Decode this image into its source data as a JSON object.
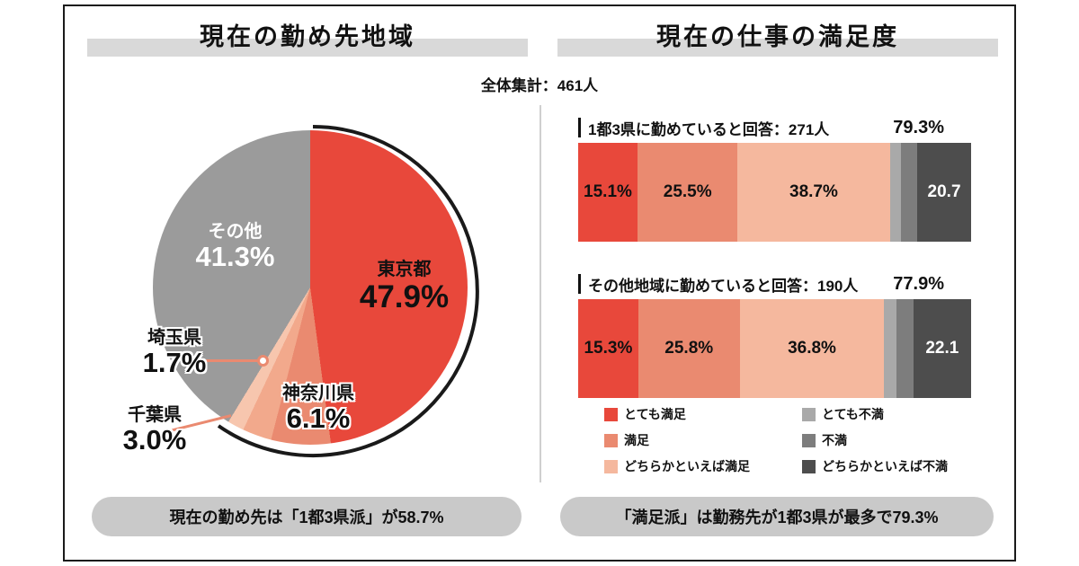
{
  "page": {
    "total_label": "全体集計：461人"
  },
  "left": {
    "title": "現在の勤め先地域",
    "caption": "現在の勤め先は「1都3県派」が58.7%"
  },
  "right": {
    "title": "現在の仕事の満足度",
    "caption": "「満足派」は勤務先が1都3県が最多で79.3%"
  },
  "colors": {
    "very_satisfied": "#e8483b",
    "satisfied": "#ea8a70",
    "somewhat_satisfied": "#f5b89e",
    "very_dissatisfied": "#a9a9a9",
    "dissatisfied": "#7d7d7d",
    "somewhat_dissatisfied": "#4d4d4d",
    "pie_other": "#9b9b9b",
    "pill": "#c9c9c9",
    "title_highlight": "#d9d9d9"
  },
  "chart_data": [
    {
      "type": "pie",
      "title": "現在の勤め先地域",
      "start_angle_deg": 0,
      "direction": "clockwise",
      "unit": "%",
      "slices": [
        {
          "label": "東京都",
          "value": 47.9,
          "display": "47.9%",
          "color": "#e8483b"
        },
        {
          "label": "神奈川県",
          "value": 6.1,
          "display": "6.1%",
          "color": "#ea8a70"
        },
        {
          "label": "千葉県",
          "value": 3.0,
          "display": "3.0%",
          "color": "#f2a98c"
        },
        {
          "label": "埼玉県",
          "value": 1.7,
          "display": "1.7%",
          "color": "#f7c6ae"
        },
        {
          "label": "その他",
          "value": 41.3,
          "display": "41.3%",
          "color": "#9b9b9b"
        }
      ]
    },
    {
      "type": "bar",
      "subtype": "stacked-horizontal",
      "title": "現在の仕事の満足度",
      "axis_range": [
        0,
        100
      ],
      "unit": "%",
      "bars": [
        {
          "label": "1都3県に勤めていると回答：271人",
          "satisfied_total": "79.3%",
          "segments": [
            {
              "name": "とても満足",
              "value": 15.1,
              "label": "15.1%",
              "color": "#e8483b",
              "text_color": "#111111"
            },
            {
              "name": "満足",
              "value": 25.5,
              "label": "25.5%",
              "color": "#ea8a70",
              "text_color": "#111111"
            },
            {
              "name": "どちらかといえば満足",
              "value": 38.7,
              "label": "38.7%",
              "color": "#f5b89e",
              "text_color": "#111111"
            },
            {
              "name": "とても不満",
              "value": 2.8,
              "label": "",
              "color": "#a9a9a9",
              "text_color": "#ffffff"
            },
            {
              "name": "不満",
              "value": 4.2,
              "label": "",
              "color": "#7d7d7d",
              "text_color": "#ffffff"
            },
            {
              "name": "どちらかといえば不満",
              "value": 13.7,
              "label": "20.7",
              "color": "#4d4d4d",
              "text_color": "#ffffff"
            }
          ]
        },
        {
          "label": "その他地域に勤めていると回答：190人",
          "satisfied_total": "77.9%",
          "segments": [
            {
              "name": "とても満足",
              "value": 15.3,
              "label": "15.3%",
              "color": "#e8483b",
              "text_color": "#111111"
            },
            {
              "name": "満足",
              "value": 25.8,
              "label": "25.8%",
              "color": "#ea8a70",
              "text_color": "#111111"
            },
            {
              "name": "どちらかといえば満足",
              "value": 36.8,
              "label": "36.8%",
              "color": "#f5b89e",
              "text_color": "#111111"
            },
            {
              "name": "とても不満",
              "value": 3.0,
              "label": "",
              "color": "#a9a9a9",
              "text_color": "#ffffff"
            },
            {
              "name": "不満",
              "value": 4.4,
              "label": "",
              "color": "#7d7d7d",
              "text_color": "#ffffff"
            },
            {
              "name": "どちらかといえば不満",
              "value": 14.7,
              "label": "22.1",
              "color": "#4d4d4d",
              "text_color": "#ffffff"
            }
          ]
        }
      ],
      "legend": [
        {
          "label": "とても満足",
          "color": "#e8483b"
        },
        {
          "label": "満足",
          "color": "#ea8a70"
        },
        {
          "label": "どちらかといえば満足",
          "color": "#f5b89e"
        },
        {
          "label": "とても不満",
          "color": "#a9a9a9"
        },
        {
          "label": "不満",
          "color": "#7d7d7d"
        },
        {
          "label": "どちらかといえば不満",
          "color": "#4d4d4d"
        }
      ]
    }
  ]
}
